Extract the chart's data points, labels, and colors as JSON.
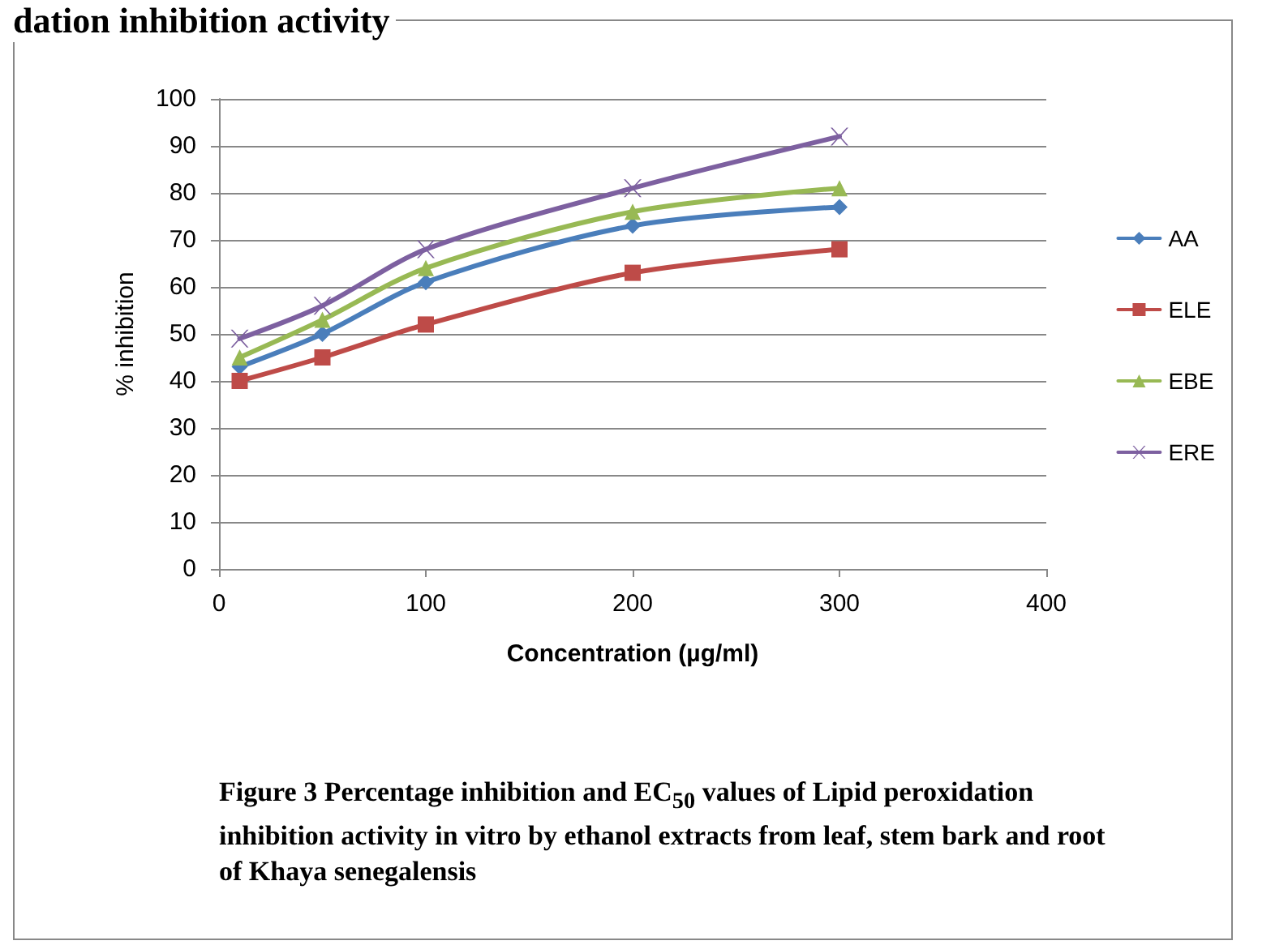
{
  "chart_data": {
    "type": "line",
    "title": "dation inhibition activity",
    "xlabel": "Concentration (µg/ml)",
    "ylabel": "% inhibition",
    "annotations": [
      "Figure  3 Percentage inhibition and EC$_{50}$ values of Lipid peroxidation inhibition activity in vitro by ethanol extracts from leaf, stem bark and root of Khaya senegalensis"
    ],
    "x": [
      10,
      50,
      100,
      200,
      300
    ],
    "series": [
      {
        "name": "AA",
        "color": "#4a7ebb",
        "marker": "diamond",
        "values": [
          43,
          50,
          61,
          73,
          77
        ]
      },
      {
        "name": "ELE",
        "color": "#be4b48",
        "marker": "square",
        "values": [
          40,
          45,
          52,
          63,
          68
        ]
      },
      {
        "name": "EBE",
        "color": "#98b954",
        "marker": "triangle",
        "values": [
          45,
          53,
          64,
          76,
          81
        ]
      },
      {
        "name": "ERE",
        "color": "#7d60a0",
        "marker": "cross",
        "values": [
          49,
          56,
          68,
          81,
          92
        ]
      }
    ],
    "xlim": [
      0,
      400
    ],
    "xticks": [
      0,
      100,
      200,
      300,
      400
    ],
    "ylim": [
      0,
      100
    ],
    "yticks": [
      0,
      10,
      20,
      30,
      40,
      50,
      60,
      70,
      80,
      90,
      100
    ],
    "grid": "y",
    "legend": "right",
    "line_style": "solid"
  }
}
